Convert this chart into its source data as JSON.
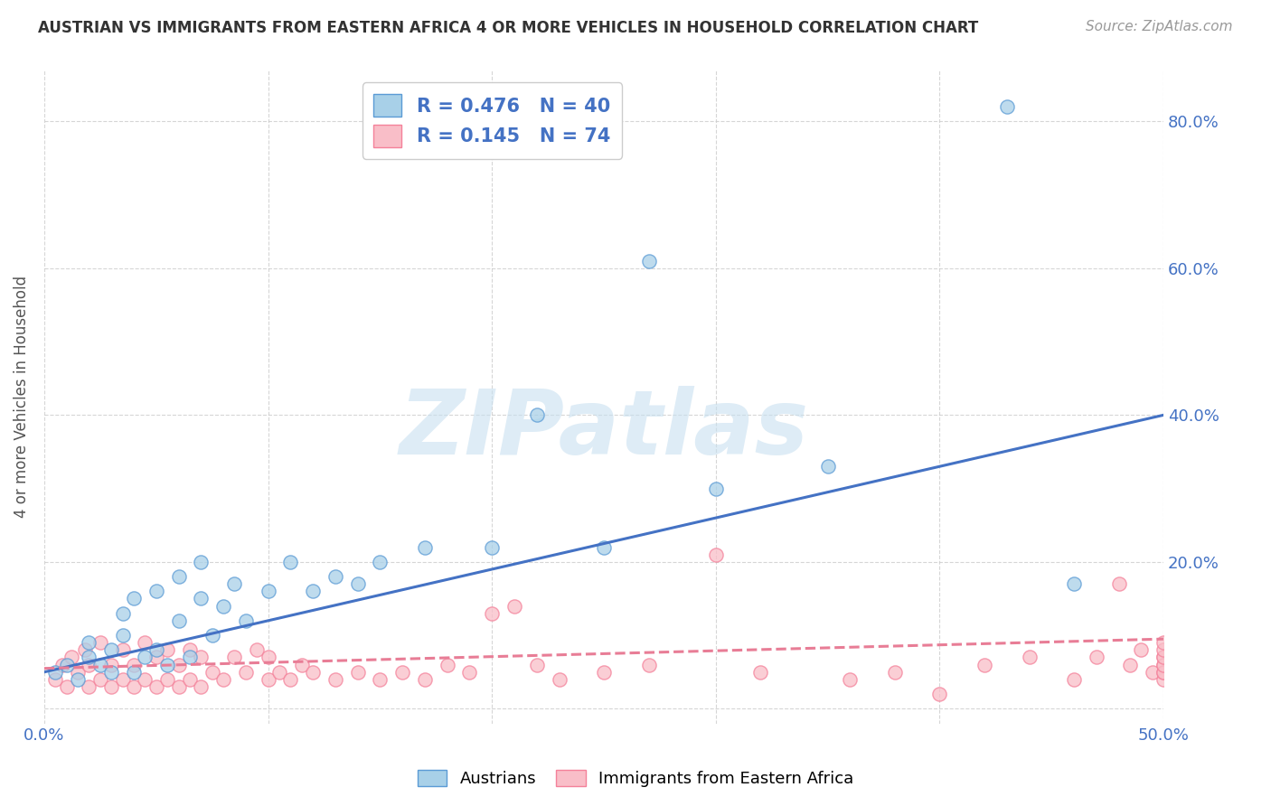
{
  "title": "AUSTRIAN VS IMMIGRANTS FROM EASTERN AFRICA 4 OR MORE VEHICLES IN HOUSEHOLD CORRELATION CHART",
  "source": "Source: ZipAtlas.com",
  "ylabel": "4 or more Vehicles in Household",
  "xlim": [
    0.0,
    0.5
  ],
  "ylim": [
    -0.02,
    0.87
  ],
  "blue_R": 0.476,
  "blue_N": 40,
  "pink_R": 0.145,
  "pink_N": 74,
  "blue_color": "#A8D0E8",
  "pink_color": "#F9BEC8",
  "blue_edge_color": "#5B9BD5",
  "pink_edge_color": "#F4819A",
  "blue_line_color": "#4472C4",
  "pink_line_color": "#E87D96",
  "blue_line_x0": 0.0,
  "blue_line_y0": 0.05,
  "blue_line_x1": 0.5,
  "blue_line_y1": 0.4,
  "pink_line_x0": 0.0,
  "pink_line_y0": 0.055,
  "pink_line_x1": 0.5,
  "pink_line_y1": 0.095,
  "blue_scatter_x": [
    0.005,
    0.01,
    0.015,
    0.02,
    0.02,
    0.025,
    0.03,
    0.03,
    0.035,
    0.035,
    0.04,
    0.04,
    0.045,
    0.05,
    0.05,
    0.055,
    0.06,
    0.06,
    0.065,
    0.07,
    0.07,
    0.075,
    0.08,
    0.085,
    0.09,
    0.1,
    0.11,
    0.12,
    0.13,
    0.14,
    0.15,
    0.17,
    0.2,
    0.22,
    0.25,
    0.27,
    0.3,
    0.35,
    0.43,
    0.46
  ],
  "blue_scatter_y": [
    0.05,
    0.06,
    0.04,
    0.07,
    0.09,
    0.06,
    0.05,
    0.08,
    0.1,
    0.13,
    0.05,
    0.15,
    0.07,
    0.08,
    0.16,
    0.06,
    0.12,
    0.18,
    0.07,
    0.15,
    0.2,
    0.1,
    0.14,
    0.17,
    0.12,
    0.16,
    0.2,
    0.16,
    0.18,
    0.17,
    0.2,
    0.22,
    0.22,
    0.4,
    0.22,
    0.61,
    0.3,
    0.33,
    0.82,
    0.17
  ],
  "pink_scatter_x": [
    0.005,
    0.008,
    0.01,
    0.012,
    0.015,
    0.018,
    0.02,
    0.02,
    0.025,
    0.025,
    0.03,
    0.03,
    0.035,
    0.035,
    0.04,
    0.04,
    0.045,
    0.045,
    0.05,
    0.05,
    0.055,
    0.055,
    0.06,
    0.06,
    0.065,
    0.065,
    0.07,
    0.07,
    0.075,
    0.08,
    0.085,
    0.09,
    0.095,
    0.1,
    0.1,
    0.105,
    0.11,
    0.115,
    0.12,
    0.13,
    0.14,
    0.15,
    0.16,
    0.17,
    0.18,
    0.19,
    0.2,
    0.21,
    0.22,
    0.23,
    0.25,
    0.27,
    0.3,
    0.32,
    0.36,
    0.38,
    0.4,
    0.42,
    0.44,
    0.46,
    0.47,
    0.48,
    0.485,
    0.49,
    0.495,
    0.5,
    0.5,
    0.5,
    0.5,
    0.5,
    0.5,
    0.5,
    0.5,
    0.5
  ],
  "pink_scatter_y": [
    0.04,
    0.06,
    0.03,
    0.07,
    0.05,
    0.08,
    0.03,
    0.06,
    0.04,
    0.09,
    0.03,
    0.06,
    0.04,
    0.08,
    0.03,
    0.06,
    0.04,
    0.09,
    0.03,
    0.07,
    0.04,
    0.08,
    0.03,
    0.06,
    0.04,
    0.08,
    0.03,
    0.07,
    0.05,
    0.04,
    0.07,
    0.05,
    0.08,
    0.04,
    0.07,
    0.05,
    0.04,
    0.06,
    0.05,
    0.04,
    0.05,
    0.04,
    0.05,
    0.04,
    0.06,
    0.05,
    0.13,
    0.14,
    0.06,
    0.04,
    0.05,
    0.06,
    0.21,
    0.05,
    0.04,
    0.05,
    0.02,
    0.06,
    0.07,
    0.04,
    0.07,
    0.17,
    0.06,
    0.08,
    0.05,
    0.04,
    0.05,
    0.06,
    0.07,
    0.05,
    0.06,
    0.07,
    0.08,
    0.09
  ],
  "watermark_text": "ZIPatlas",
  "watermark_color": "#C8E0F0",
  "title_fontsize": 12,
  "source_fontsize": 11,
  "tick_fontsize": 13,
  "ylabel_fontsize": 12,
  "legend_fontsize": 15,
  "scatter_size": 120,
  "scatter_alpha": 0.75,
  "scatter_linewidth": 1.0
}
